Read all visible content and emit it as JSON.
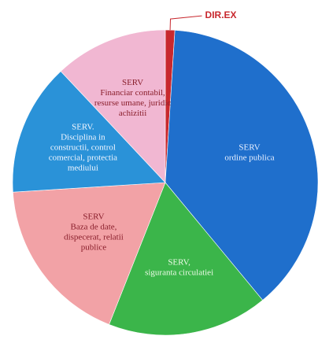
{
  "chart_data": {
    "type": "pie",
    "categories": [
      [
        "DIR.EX"
      ],
      [
        "SERV",
        "ordine publica"
      ],
      [
        "SERV,",
        "siguranta circulatiei"
      ],
      [
        "SERV",
        "Baza de date,",
        "dispecerat, relatii",
        "publice"
      ],
      [
        "SERV.",
        "Disciplina in",
        "constructii, control",
        "comercial, protectia",
        "mediului"
      ],
      [
        "SERV",
        "Financiar contabil,",
        "resurse umane, juridic",
        "achizitii"
      ]
    ],
    "values": [
      1,
      38,
      17,
      18,
      14,
      12
    ],
    "colors": [
      "#c8282e",
      "#1f6fcc",
      "#3bb54a",
      "#f2a2a6",
      "#2a92d8",
      "#f1b7d2"
    ]
  }
}
